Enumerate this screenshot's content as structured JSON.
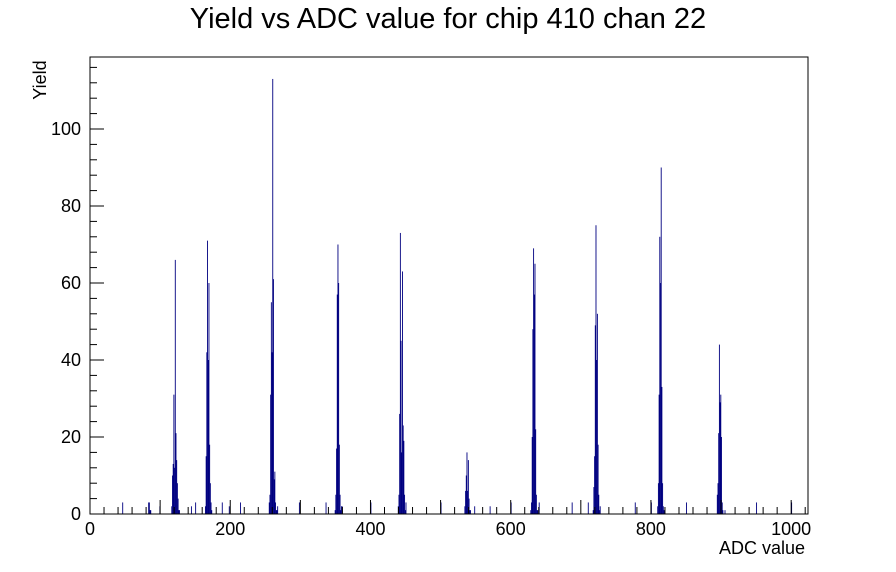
{
  "chart_data": {
    "type": "bar",
    "title": "Yield vs ADC value for chip 410 chan 22",
    "xlabel": "ADC value",
    "ylabel": "Yield",
    "xlim": [
      0,
      1024
    ],
    "ylim": [
      0,
      118.7
    ],
    "x_ticks": [
      0,
      200,
      400,
      600,
      800,
      1000
    ],
    "y_ticks": [
      0,
      20,
      40,
      60,
      80,
      100
    ],
    "grid": false,
    "line_color": "#000080",
    "series": [
      {
        "x": [
          46,
          83,
          84,
          85,
          86,
          99,
          116,
          117,
          118,
          119,
          120,
          121,
          122,
          123,
          124,
          125,
          126,
          127,
          144,
          150,
          164,
          165,
          166,
          167,
          168,
          169,
          170,
          171,
          172,
          173,
          188,
          198,
          214,
          255,
          256,
          257,
          258,
          259,
          260,
          261,
          262,
          263,
          264,
          265,
          266,
          267,
          298,
          336,
          349,
          350,
          351,
          352,
          353,
          354,
          355,
          356,
          357,
          358,
          359,
          400,
          439,
          440,
          441,
          442,
          443,
          444,
          445,
          446,
          447,
          448,
          449,
          450,
          500,
          534,
          535,
          536,
          537,
          538,
          539,
          540,
          541,
          542,
          548,
          570,
          600,
          628,
          629,
          630,
          631,
          632,
          633,
          634,
          635,
          636,
          637,
          638,
          640,
          687,
          710,
          717,
          718,
          719,
          720,
          721,
          722,
          723,
          724,
          725,
          726,
          727,
          777,
          800,
          809,
          810,
          811,
          812,
          813,
          814,
          815,
          816,
          817,
          818,
          850,
          894,
          895,
          896,
          897,
          898,
          899,
          900,
          901,
          902,
          905,
          950,
          1000
        ],
        "values": [
          3,
          3,
          3,
          1,
          1,
          2,
          2,
          10,
          13,
          31,
          12,
          66,
          21,
          14,
          8,
          4,
          1,
          1,
          2,
          3,
          2,
          15,
          42,
          71,
          40,
          60,
          18,
          8,
          3,
          1,
          3,
          2,
          3,
          3,
          5,
          31,
          55,
          42,
          113,
          61,
          9,
          11,
          3,
          1,
          1,
          2,
          3,
          3,
          1,
          5,
          17,
          57,
          70,
          60,
          18,
          5,
          1,
          2,
          2,
          3,
          2,
          5,
          26,
          73,
          45,
          16,
          63,
          23,
          19,
          5,
          1,
          3,
          3,
          2,
          6,
          10,
          16,
          6,
          14,
          4,
          1,
          1,
          2,
          2,
          3,
          1,
          3,
          20,
          48,
          69,
          57,
          65,
          22,
          5,
          1,
          1,
          3,
          3,
          3,
          1,
          7,
          15,
          49,
          75,
          40,
          52,
          18,
          5,
          1,
          2,
          3,
          3,
          2,
          8,
          31,
          72,
          60,
          90,
          33,
          8,
          2,
          1,
          3,
          5,
          8,
          21,
          44,
          29,
          31,
          20,
          3,
          1,
          1,
          3,
          3
        ]
      }
    ]
  }
}
